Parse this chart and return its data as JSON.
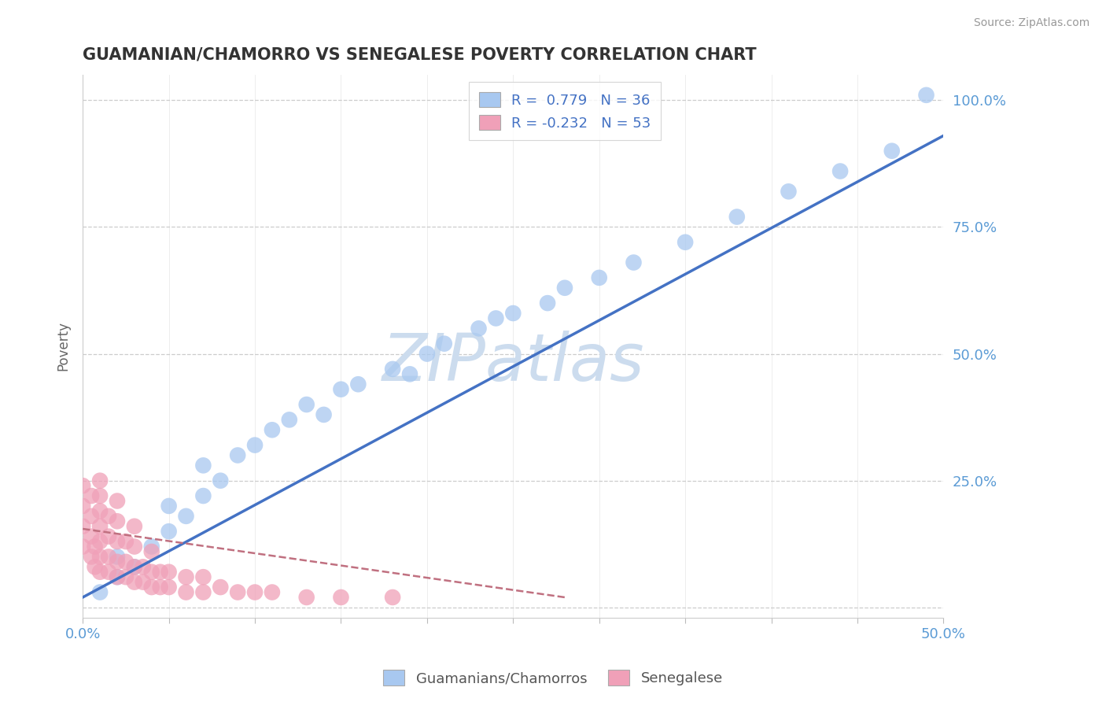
{
  "title": "GUAMANIAN/CHAMORRO VS SENEGALESE POVERTY CORRELATION CHART",
  "source": "Source: ZipAtlas.com",
  "ylabel": "Poverty",
  "xlim": [
    0.0,
    0.5
  ],
  "ylim": [
    -0.02,
    1.05
  ],
  "yticks": [
    0.0,
    0.25,
    0.5,
    0.75,
    1.0
  ],
  "ytick_labels": [
    "",
    "25.0%",
    "50.0%",
    "75.0%",
    "100.0%"
  ],
  "blue_color": "#a8c8f0",
  "pink_color": "#f0a0b8",
  "blue_line_color": "#4472c4",
  "pink_line_color": "#c07080",
  "r_blue": 0.779,
  "n_blue": 36,
  "r_pink": -0.232,
  "n_pink": 53,
  "watermark": "ZIPatlas",
  "watermark_color": "#ccdcee",
  "legend_label_blue": "Guamanians/Chamorros",
  "legend_label_pink": "Senegalese",
  "background_color": "#ffffff",
  "blue_line_x0": 0.0,
  "blue_line_y0": 0.02,
  "blue_line_x1": 0.5,
  "blue_line_y1": 0.93,
  "pink_line_x0": 0.0,
  "pink_line_y0": 0.155,
  "pink_line_x1": 0.28,
  "pink_line_y1": 0.02,
  "blue_scatter_x": [
    0.01,
    0.02,
    0.02,
    0.03,
    0.04,
    0.05,
    0.05,
    0.06,
    0.07,
    0.07,
    0.08,
    0.09,
    0.1,
    0.11,
    0.12,
    0.13,
    0.14,
    0.15,
    0.16,
    0.18,
    0.19,
    0.2,
    0.21,
    0.23,
    0.24,
    0.25,
    0.27,
    0.28,
    0.3,
    0.32,
    0.35,
    0.38,
    0.41,
    0.44,
    0.47,
    0.49
  ],
  "blue_scatter_y": [
    0.03,
    0.06,
    0.1,
    0.08,
    0.12,
    0.15,
    0.2,
    0.18,
    0.22,
    0.28,
    0.25,
    0.3,
    0.32,
    0.35,
    0.37,
    0.4,
    0.38,
    0.43,
    0.44,
    0.47,
    0.46,
    0.5,
    0.52,
    0.55,
    0.57,
    0.58,
    0.6,
    0.63,
    0.65,
    0.68,
    0.72,
    0.77,
    0.82,
    0.86,
    0.9,
    1.01
  ],
  "pink_scatter_x": [
    0.0,
    0.0,
    0.0,
    0.0,
    0.005,
    0.005,
    0.005,
    0.005,
    0.007,
    0.007,
    0.01,
    0.01,
    0.01,
    0.01,
    0.01,
    0.01,
    0.01,
    0.015,
    0.015,
    0.015,
    0.015,
    0.02,
    0.02,
    0.02,
    0.02,
    0.02,
    0.025,
    0.025,
    0.025,
    0.03,
    0.03,
    0.03,
    0.03,
    0.035,
    0.035,
    0.04,
    0.04,
    0.04,
    0.045,
    0.045,
    0.05,
    0.05,
    0.06,
    0.06,
    0.07,
    0.07,
    0.08,
    0.09,
    0.1,
    0.11,
    0.13,
    0.15,
    0.18
  ],
  "pink_scatter_y": [
    0.12,
    0.16,
    0.2,
    0.24,
    0.1,
    0.14,
    0.18,
    0.22,
    0.08,
    0.12,
    0.07,
    0.1,
    0.13,
    0.16,
    0.19,
    0.22,
    0.25,
    0.07,
    0.1,
    0.14,
    0.18,
    0.06,
    0.09,
    0.13,
    0.17,
    0.21,
    0.06,
    0.09,
    0.13,
    0.05,
    0.08,
    0.12,
    0.16,
    0.05,
    0.08,
    0.04,
    0.07,
    0.11,
    0.04,
    0.07,
    0.04,
    0.07,
    0.03,
    0.06,
    0.03,
    0.06,
    0.04,
    0.03,
    0.03,
    0.03,
    0.02,
    0.02,
    0.02
  ]
}
